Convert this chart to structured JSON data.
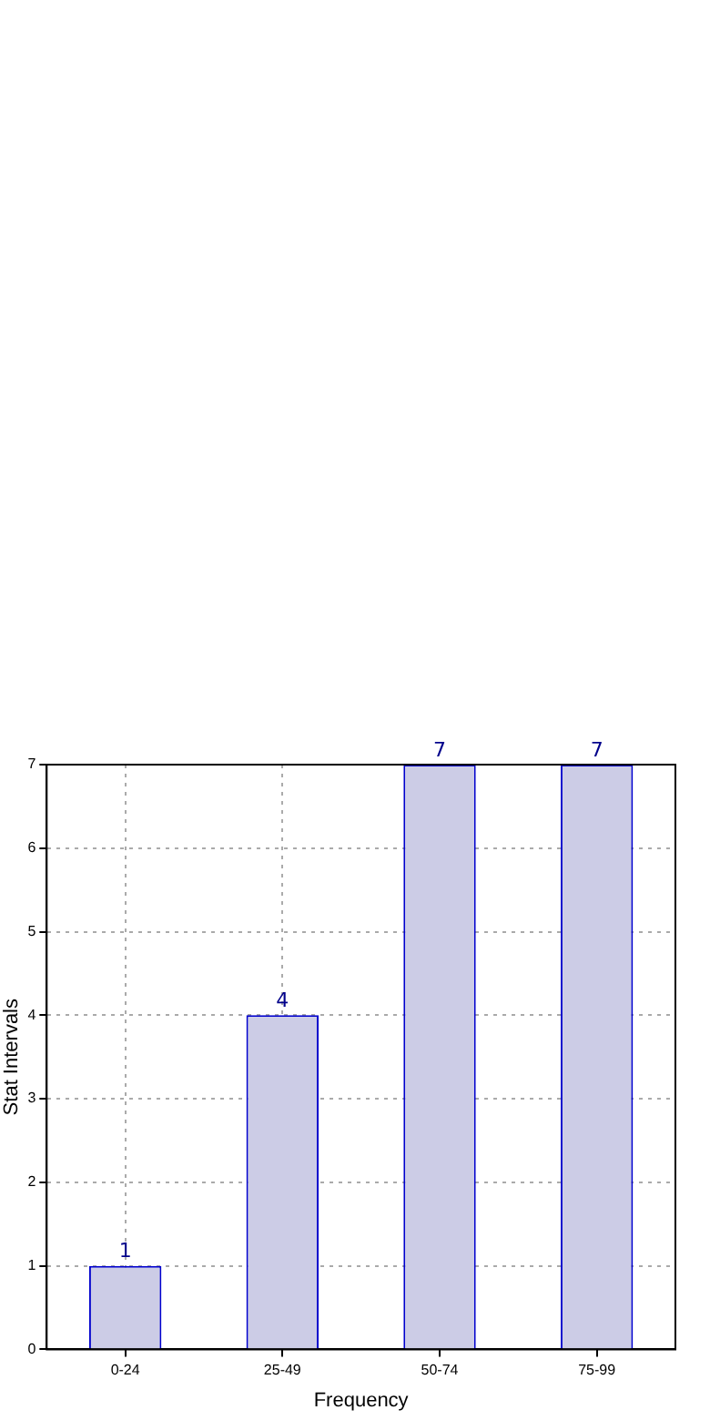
{
  "chart_data": {
    "type": "bar",
    "xlabel": "Frequency",
    "ylabel": "Stat Intervals",
    "categories": [
      "0-24",
      "25-49",
      "50-74",
      "75-99"
    ],
    "values": [
      1,
      4,
      7,
      7
    ],
    "color": "#ccccE6",
    "ylim": [
      0,
      7
    ],
    "yticks": [
      0,
      1,
      2,
      3,
      4,
      5,
      6,
      7
    ],
    "grid": true,
    "data_labels": true
  }
}
